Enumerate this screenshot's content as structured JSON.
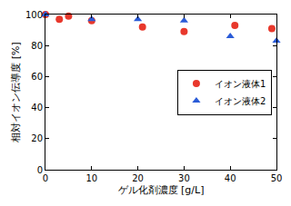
{
  "chart_data": {
    "type": "scatter",
    "x_label": "ゲル化剤濃度 [g/L]",
    "y_label": "相対イオン伝導度 [%]",
    "xlim": [
      0,
      50
    ],
    "xticks": [
      0,
      10,
      20,
      30,
      40,
      50
    ],
    "ylim": [
      0,
      100
    ],
    "yticks": [
      0,
      20,
      40,
      60,
      80,
      100
    ],
    "grid": false,
    "legend": "right",
    "series": [
      {
        "name": "イオン液体1",
        "color": "#e8382c",
        "marker": "circle",
        "x": [
          0,
          3,
          5,
          10,
          21,
          30,
          41,
          49
        ],
        "values": [
          100,
          97,
          99,
          96,
          92,
          89,
          93,
          91
        ]
      },
      {
        "name": "イオン液体2",
        "color": "#2a5bd7",
        "marker": "triangle-up",
        "x": [
          0,
          10,
          20,
          30,
          40,
          50
        ],
        "values": [
          100,
          97,
          97,
          96,
          86,
          83
        ]
      }
    ]
  }
}
